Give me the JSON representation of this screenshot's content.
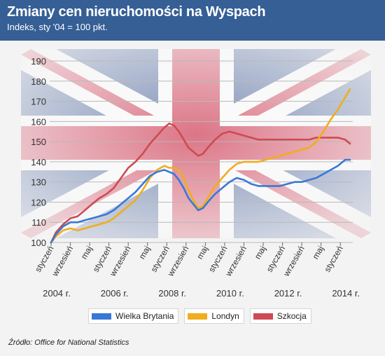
{
  "header": {
    "title": "Zmiany cen nieruchomości na Wyspach",
    "subtitle": "Indeks, sty '04 = 100 pkt."
  },
  "source": "Źródło: Office for National Statistics",
  "colors": {
    "wielka_brytania": "#3a78d6",
    "londyn": "#f0ad1e",
    "szkocja": "#cf4a52",
    "header_bg": "#355f95"
  },
  "chart_data": {
    "type": "line",
    "ylim": [
      100,
      190
    ],
    "yticks": [
      "100",
      "110",
      "120",
      "130",
      "140",
      "150",
      "160",
      "170",
      "180",
      "190"
    ],
    "month_ticks": [
      "styczeń",
      "wrzesień",
      "maj",
      "styczeń",
      "wrzesień",
      "maj",
      "styczeń",
      "wrzesień",
      "maj",
      "styczeń",
      "wrzesień",
      "maj",
      "styczeń",
      "wrzesień",
      "maj",
      "styczeń"
    ],
    "month_tick_dates": [
      "2004-01",
      "2004-09",
      "2005-05",
      "2006-01",
      "2006-09",
      "2007-05",
      "2008-01",
      "2008-09",
      "2009-05",
      "2010-01",
      "2010-09",
      "2011-05",
      "2012-01",
      "2012-09",
      "2013-05",
      "2014-01"
    ],
    "year_labels": [
      "2004 r.",
      "2006 r.",
      "2008 r.",
      "2010 r.",
      "2012 r.",
      "2014 r."
    ],
    "year_label_dates": [
      "2004-01",
      "2006-01",
      "2008-01",
      "2010-01",
      "2012-01",
      "2014-01"
    ],
    "grid": true,
    "legend_position": "bottom",
    "series": [
      {
        "name": "Wielka Brytania",
        "points": [
          [
            "2004-01",
            100
          ],
          [
            "2004-03",
            104
          ],
          [
            "2004-06",
            108
          ],
          [
            "2004-09",
            110
          ],
          [
            "2004-12",
            110
          ],
          [
            "2005-03",
            111
          ],
          [
            "2005-06",
            112
          ],
          [
            "2005-09",
            113
          ],
          [
            "2005-12",
            114
          ],
          [
            "2006-03",
            116
          ],
          [
            "2006-06",
            119
          ],
          [
            "2006-09",
            122
          ],
          [
            "2006-12",
            125
          ],
          [
            "2007-03",
            129
          ],
          [
            "2007-06",
            133
          ],
          [
            "2007-09",
            135
          ],
          [
            "2007-12",
            136
          ],
          [
            "2008-02",
            135
          ],
          [
            "2008-04",
            134
          ],
          [
            "2008-06",
            131
          ],
          [
            "2008-08",
            127
          ],
          [
            "2008-10",
            122
          ],
          [
            "2008-12",
            119
          ],
          [
            "2009-02",
            116
          ],
          [
            "2009-04",
            117
          ],
          [
            "2009-06",
            120
          ],
          [
            "2009-09",
            124
          ],
          [
            "2009-12",
            127
          ],
          [
            "2010-03",
            130
          ],
          [
            "2010-06",
            132
          ],
          [
            "2010-09",
            131
          ],
          [
            "2010-12",
            129
          ],
          [
            "2011-03",
            128
          ],
          [
            "2011-06",
            128
          ],
          [
            "2011-09",
            128
          ],
          [
            "2011-12",
            128
          ],
          [
            "2012-03",
            129
          ],
          [
            "2012-06",
            130
          ],
          [
            "2012-09",
            130
          ],
          [
            "2012-12",
            131
          ],
          [
            "2013-03",
            132
          ],
          [
            "2013-06",
            134
          ],
          [
            "2013-09",
            136
          ],
          [
            "2013-12",
            138
          ],
          [
            "2014-03",
            141
          ],
          [
            "2014-05",
            141
          ]
        ]
      },
      {
        "name": "Londyn",
        "points": [
          [
            "2004-01",
            100
          ],
          [
            "2004-03",
            103
          ],
          [
            "2004-06",
            106
          ],
          [
            "2004-09",
            107
          ],
          [
            "2004-12",
            106
          ],
          [
            "2005-03",
            107
          ],
          [
            "2005-06",
            108
          ],
          [
            "2005-09",
            109
          ],
          [
            "2005-12",
            110
          ],
          [
            "2006-03",
            112
          ],
          [
            "2006-06",
            115
          ],
          [
            "2006-09",
            118
          ],
          [
            "2006-12",
            121
          ],
          [
            "2007-03",
            126
          ],
          [
            "2007-06",
            132
          ],
          [
            "2007-09",
            136
          ],
          [
            "2007-12",
            138
          ],
          [
            "2008-02",
            137
          ],
          [
            "2008-04",
            137
          ],
          [
            "2008-06",
            136
          ],
          [
            "2008-08",
            132
          ],
          [
            "2008-10",
            126
          ],
          [
            "2008-12",
            121
          ],
          [
            "2009-02",
            117
          ],
          [
            "2009-04",
            118
          ],
          [
            "2009-06",
            122
          ],
          [
            "2009-09",
            128
          ],
          [
            "2009-12",
            132
          ],
          [
            "2010-03",
            136
          ],
          [
            "2010-06",
            139
          ],
          [
            "2010-09",
            140
          ],
          [
            "2010-12",
            140
          ],
          [
            "2011-03",
            140
          ],
          [
            "2011-06",
            141
          ],
          [
            "2011-09",
            142
          ],
          [
            "2011-12",
            143
          ],
          [
            "2012-03",
            144
          ],
          [
            "2012-06",
            145
          ],
          [
            "2012-09",
            146
          ],
          [
            "2012-12",
            147
          ],
          [
            "2013-03",
            150
          ],
          [
            "2013-06",
            155
          ],
          [
            "2013-09",
            161
          ],
          [
            "2013-12",
            166
          ],
          [
            "2014-03",
            172
          ],
          [
            "2014-05",
            176
          ]
        ]
      },
      {
        "name": "Szkocja",
        "points": [
          [
            "2004-01",
            100
          ],
          [
            "2004-03",
            105
          ],
          [
            "2004-06",
            109
          ],
          [
            "2004-09",
            112
          ],
          [
            "2004-12",
            113
          ],
          [
            "2005-03",
            116
          ],
          [
            "2005-06",
            119
          ],
          [
            "2005-09",
            122
          ],
          [
            "2005-12",
            124
          ],
          [
            "2006-03",
            127
          ],
          [
            "2006-06",
            132
          ],
          [
            "2006-09",
            137
          ],
          [
            "2006-12",
            140
          ],
          [
            "2007-03",
            144
          ],
          [
            "2007-06",
            149
          ],
          [
            "2007-09",
            153
          ],
          [
            "2007-12",
            157
          ],
          [
            "2008-02",
            159
          ],
          [
            "2008-04",
            158
          ],
          [
            "2008-06",
            155
          ],
          [
            "2008-08",
            151
          ],
          [
            "2008-10",
            147
          ],
          [
            "2008-12",
            145
          ],
          [
            "2009-02",
            143
          ],
          [
            "2009-04",
            144
          ],
          [
            "2009-06",
            147
          ],
          [
            "2009-09",
            151
          ],
          [
            "2009-12",
            154
          ],
          [
            "2010-03",
            155
          ],
          [
            "2010-06",
            154
          ],
          [
            "2010-09",
            153
          ],
          [
            "2010-12",
            152
          ],
          [
            "2011-03",
            151
          ],
          [
            "2011-06",
            151
          ],
          [
            "2011-09",
            151
          ],
          [
            "2011-12",
            151
          ],
          [
            "2012-03",
            151
          ],
          [
            "2012-06",
            151
          ],
          [
            "2012-09",
            151
          ],
          [
            "2012-12",
            151
          ],
          [
            "2013-03",
            152
          ],
          [
            "2013-06",
            152
          ],
          [
            "2013-09",
            152
          ],
          [
            "2013-12",
            152
          ],
          [
            "2014-03",
            151
          ],
          [
            "2014-05",
            149
          ]
        ]
      }
    ]
  }
}
